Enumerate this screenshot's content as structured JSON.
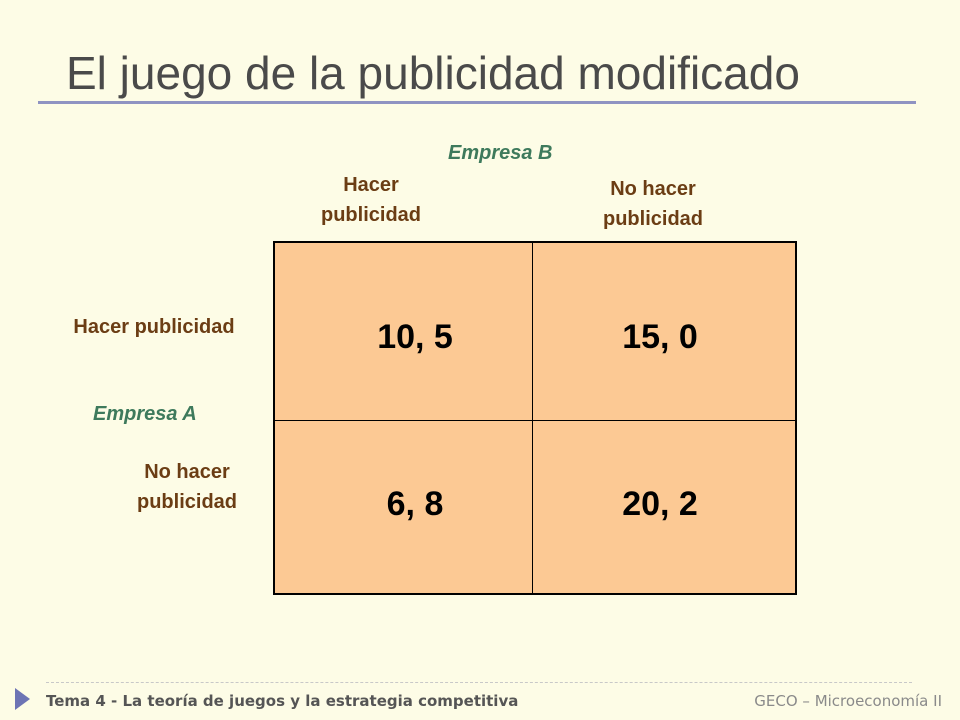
{
  "title": "El juego de la publicidad modificado",
  "player_b": "Empresa B",
  "player_a": "Empresa A",
  "columns": [
    {
      "line1": "Hacer",
      "line2": "publicidad"
    },
    {
      "line1": "No hacer",
      "line2": "publicidad"
    }
  ],
  "rows": [
    {
      "line1": "Hacer publicidad",
      "line2": ""
    },
    {
      "line1": "No hacer",
      "line2": "publicidad"
    }
  ],
  "payoffs": [
    [
      "10, 5",
      "15, 0"
    ],
    [
      "6, 8",
      "20, 2"
    ]
  ],
  "footer": {
    "left": "Tema 4 - La teoría de juegos y la estrategia competitiva",
    "right": "GECO – Microeconomía II"
  },
  "colors": {
    "cell_fill": "#fcc994",
    "player_label": "#3e7a5c",
    "strategy_label": "#6b3d14",
    "title_rule": "#8f93c2"
  }
}
